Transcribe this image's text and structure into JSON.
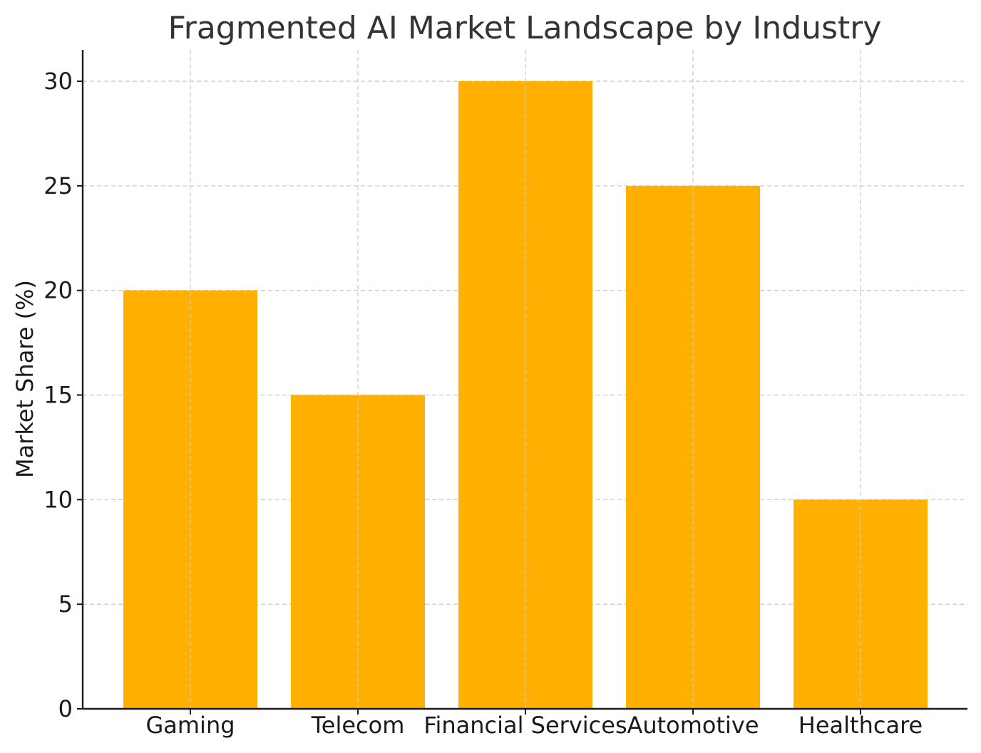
{
  "chart_data": {
    "type": "bar",
    "title": "Fragmented AI Market Landscape by Industry",
    "xlabel": "",
    "ylabel": "Market Share (%)",
    "categories": [
      "Gaming",
      "Telecom",
      "Financial Services",
      "Automotive",
      "Healthcare"
    ],
    "values": [
      20,
      15,
      30,
      25,
      10
    ],
    "ylim": [
      0,
      31.5
    ],
    "yticks": [
      0,
      5,
      10,
      15,
      20,
      25,
      30
    ],
    "ytick_labels": [
      "0",
      "5",
      "10",
      "15",
      "20",
      "25",
      "30"
    ],
    "grid": true,
    "bar_color": "#ffb000",
    "grid_color": "#cccccc"
  }
}
